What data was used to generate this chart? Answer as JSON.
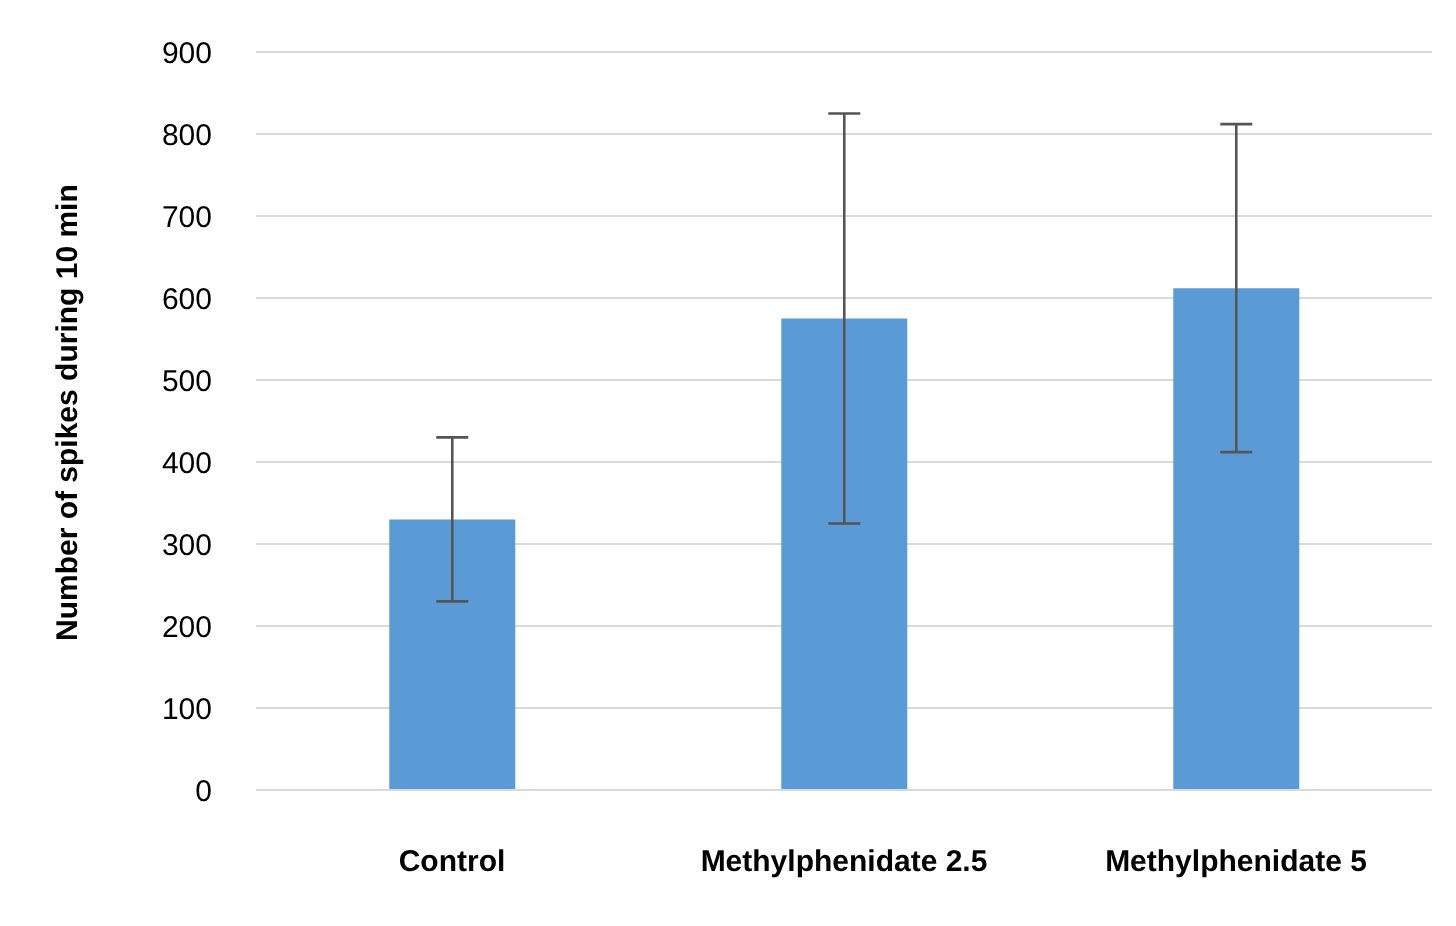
{
  "chart_data": {
    "type": "bar",
    "ylabel": "Number of spikes during 10 min",
    "categories": [
      "Control",
      "Methylphenidate 2.5",
      "Methylphenidate 5"
    ],
    "values": [
      330,
      575,
      612
    ],
    "errors": [
      100,
      250,
      200
    ],
    "color": "#5b9bd5",
    "ylim": [
      0,
      900
    ],
    "yticks": [
      0,
      100,
      200,
      300,
      400,
      500,
      600,
      700,
      800,
      900
    ],
    "grid": "y"
  }
}
